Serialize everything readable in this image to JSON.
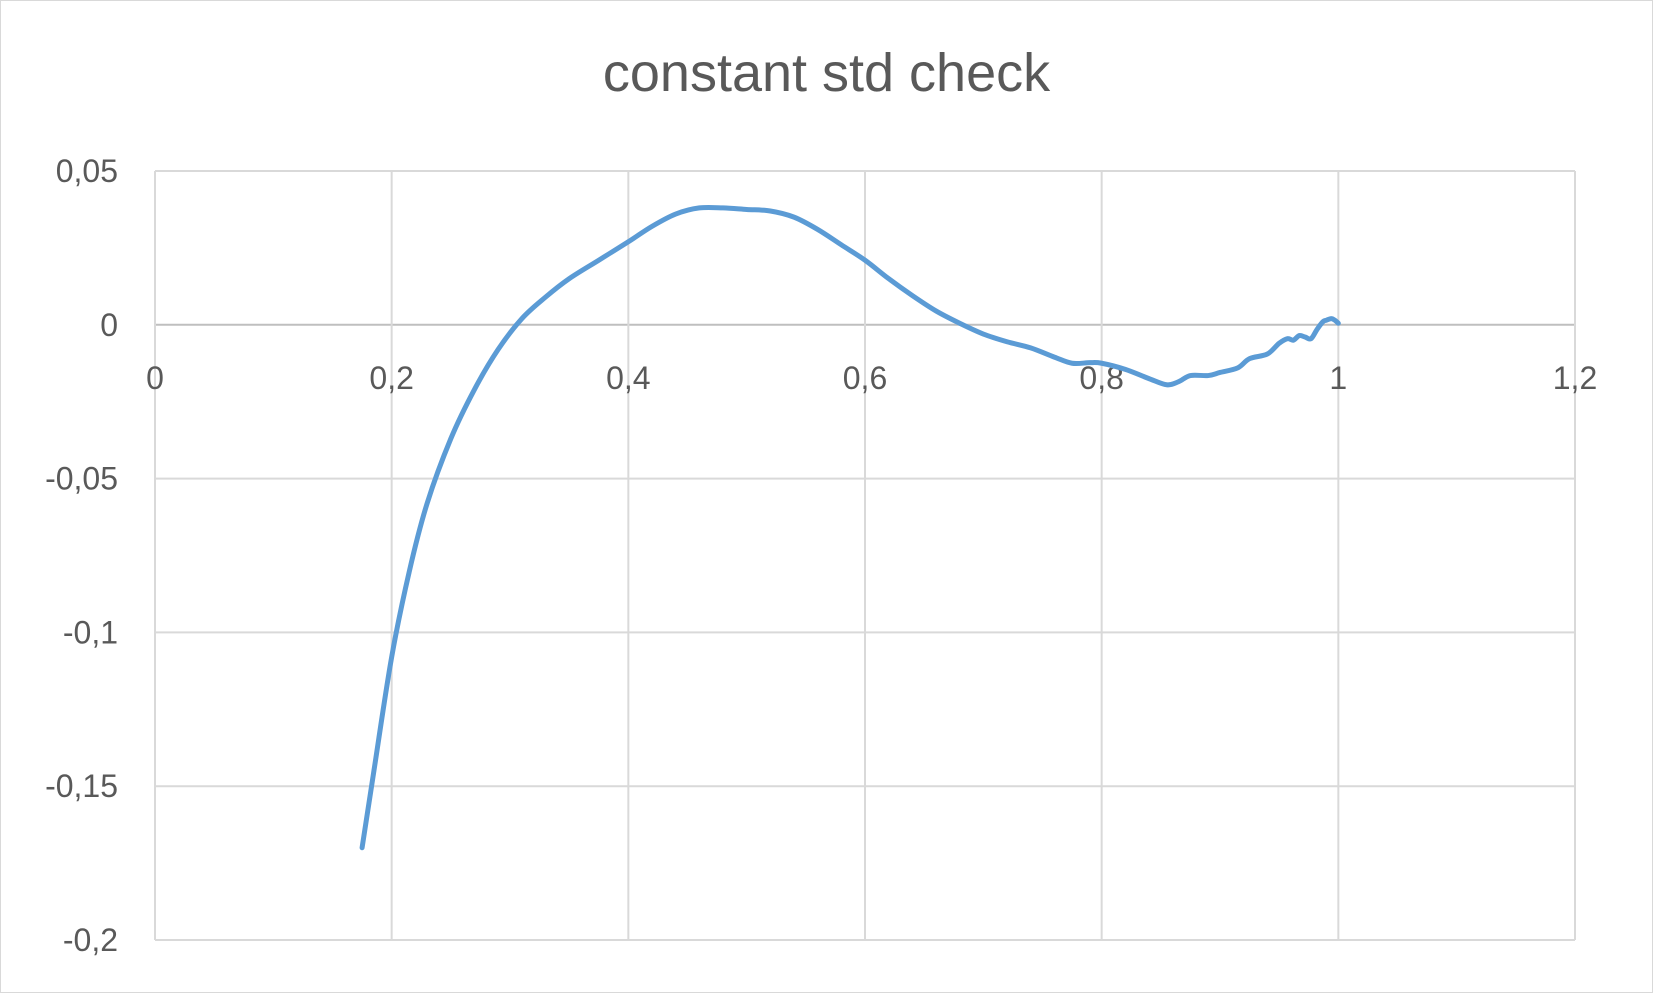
{
  "chart_data": {
    "type": "scatter",
    "title": "constant std check",
    "xlabel": "",
    "ylabel": "",
    "xlim": [
      0,
      1.2
    ],
    "ylim": [
      -0.2,
      0.05
    ],
    "x_ticks": [
      0,
      0.2,
      0.4,
      0.6,
      0.8,
      1,
      1.2
    ],
    "x_tick_labels": [
      "0",
      "0,2",
      "0,4",
      "0,6",
      "0,8",
      "1",
      "1,2"
    ],
    "y_ticks": [
      0.05,
      0,
      -0.05,
      -0.1,
      -0.15,
      -0.2
    ],
    "y_tick_labels": [
      "0,05",
      "0",
      "-0,05",
      "-0,1",
      "-0,15",
      "-0,2"
    ],
    "grid": true,
    "legend": "none",
    "colors": {
      "line": "#5b9bd5",
      "grid": "#d9d9d9",
      "zero_axis": "#bfbfbf",
      "text": "#595959"
    },
    "series": [
      {
        "values": [
          [
            0.175,
            -0.17
          ],
          [
            0.185,
            -0.145
          ],
          [
            0.2,
            -0.108
          ],
          [
            0.215,
            -0.08
          ],
          [
            0.23,
            -0.058
          ],
          [
            0.25,
            -0.037
          ],
          [
            0.27,
            -0.021
          ],
          [
            0.29,
            -0.008
          ],
          [
            0.31,
            0.002
          ],
          [
            0.33,
            0.009
          ],
          [
            0.35,
            0.015
          ],
          [
            0.375,
            0.021
          ],
          [
            0.4,
            0.027
          ],
          [
            0.42,
            0.032
          ],
          [
            0.44,
            0.036
          ],
          [
            0.46,
            0.038
          ],
          [
            0.48,
            0.038
          ],
          [
            0.5,
            0.0375
          ],
          [
            0.52,
            0.037
          ],
          [
            0.54,
            0.035
          ],
          [
            0.56,
            0.031
          ],
          [
            0.58,
            0.026
          ],
          [
            0.6,
            0.021
          ],
          [
            0.62,
            0.015
          ],
          [
            0.64,
            0.0095
          ],
          [
            0.66,
            0.0045
          ],
          [
            0.68,
            0.0005
          ],
          [
            0.7,
            -0.003
          ],
          [
            0.72,
            -0.0055
          ],
          [
            0.74,
            -0.0075
          ],
          [
            0.76,
            -0.0105
          ],
          [
            0.775,
            -0.0125
          ],
          [
            0.79,
            -0.0123
          ],
          [
            0.8,
            -0.0125
          ],
          [
            0.82,
            -0.0145
          ],
          [
            0.84,
            -0.0175
          ],
          [
            0.855,
            -0.0195
          ],
          [
            0.865,
            -0.0185
          ],
          [
            0.875,
            -0.0165
          ],
          [
            0.89,
            -0.0165
          ],
          [
            0.9,
            -0.0155
          ],
          [
            0.915,
            -0.014
          ],
          [
            0.925,
            -0.011
          ],
          [
            0.94,
            -0.0095
          ],
          [
            0.95,
            -0.006
          ],
          [
            0.957,
            -0.0045
          ],
          [
            0.962,
            -0.005
          ],
          [
            0.967,
            -0.0035
          ],
          [
            0.972,
            -0.004
          ],
          [
            0.977,
            -0.0045
          ],
          [
            0.982,
            -0.0015
          ],
          [
            0.987,
            0.001
          ],
          [
            0.99,
            0.0015
          ],
          [
            0.994,
            0.002
          ],
          [
            0.997,
            0.0015
          ],
          [
            1.0,
            0.0005
          ]
        ]
      }
    ]
  }
}
